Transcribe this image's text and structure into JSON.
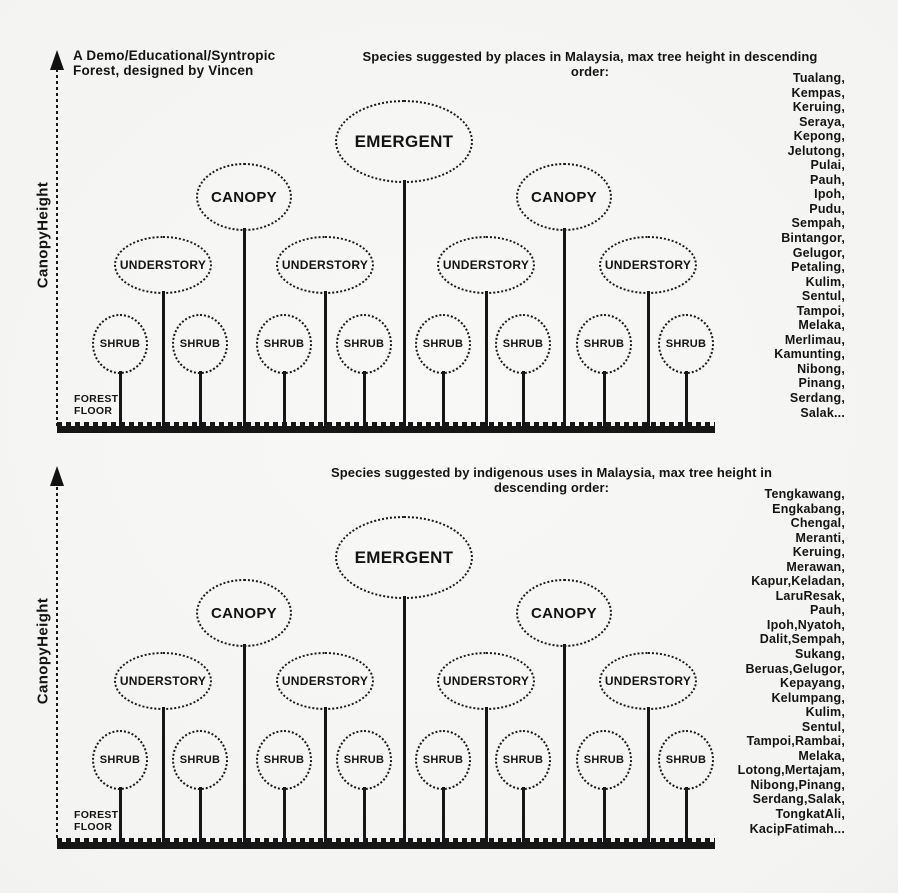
{
  "title": {
    "line1": "A Demo/Educational/Syntropic",
    "line2": "Forest, designed by Vincen"
  },
  "axis": {
    "label": "CanopyHeight"
  },
  "floor": {
    "line1": "FOREST",
    "line2": "FLOOR"
  },
  "layers": {
    "emergent": "EMERGENT",
    "canopy": "CANOPY",
    "understory": "UNDERSTORY",
    "shrub": "SHRUB"
  },
  "forest_structure": {
    "strata_descending": [
      "EMERGENT",
      "CANOPY",
      "UNDERSTORY",
      "SHRUB"
    ],
    "tree_sequence_left_to_right": [
      "SHRUB",
      "UNDERSTORY",
      "SHRUB",
      "CANOPY",
      "SHRUB",
      "UNDERSTORY",
      "SHRUB",
      "EMERGENT",
      "SHRUB",
      "UNDERSTORY",
      "SHRUB",
      "CANOPY",
      "SHRUB",
      "UNDERSTORY",
      "SHRUB"
    ]
  },
  "panels": [
    {
      "header": "Species suggested by places in Malaysia, max tree height in descending order:",
      "species": [
        "Tualang,",
        "Kempas,",
        "Keruing,",
        "Seraya,",
        "Kepong,",
        "Jelutong,",
        "Pulai,",
        "Pauh,",
        "Ipoh,",
        "Pudu,",
        "Sempah,",
        "Bintangor,",
        "Gelugor,",
        "Petaling,",
        "Kulim,",
        "Sentul,",
        "Tampoi,",
        "Melaka,",
        "Merlimau,",
        "Kamunting,",
        "Nibong,",
        "Pinang,",
        "Serdang,",
        "Salak..."
      ]
    },
    {
      "header": "Species suggested by indigenous uses in Malaysia, max tree height in descending order:",
      "species": [
        "Tengkawang,",
        "Engkabang,",
        "Chengal,",
        "Meranti,",
        "Keruing,",
        "Merawan,",
        "Kapur,Keladan,",
        "LaruResak,",
        "Pauh,",
        "Ipoh,Nyatoh,",
        "Dalit,Sempah,",
        "Sukang,",
        "Beruas,Gelugor,",
        "Kepayang,",
        "Kelumpang,",
        "Kulim,",
        "Sentul,",
        "Tampoi,Rambai,",
        "Melaka,",
        "Lotong,Mertajam,",
        "Nibong,Pinang,",
        "Serdang,Salak,",
        "TongkatAli,",
        "KacipFatimah..."
      ]
    }
  ],
  "colors": {
    "ink": "#131313",
    "background_center": "#f8f8f7",
    "background_edge": "#d3d3d1"
  }
}
